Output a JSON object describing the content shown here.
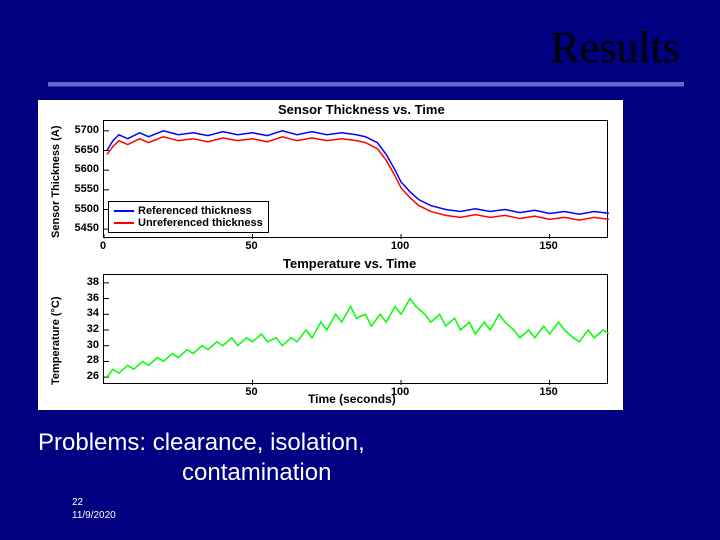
{
  "slide": {
    "title": "Results",
    "body_line1": "Problems:  clearance, isolation,",
    "body_line2": "contamination",
    "page_number": "22",
    "date": "11/9/2020"
  },
  "colors": {
    "slide_bg": "#000080",
    "accent": "#6666cc",
    "series_referenced": "#0000ff",
    "series_unreferenced": "#ff0000",
    "series_temperature": "#00ff00",
    "grid": "#cccccc",
    "plot_border": "#000000"
  },
  "chart1": {
    "title": "Sensor Thickness vs. Time",
    "title_fontsize": 13,
    "ylabel": "Sensor Thickness (A)",
    "label_fontsize": 11,
    "xlim": [
      0,
      170
    ],
    "ylim": [
      5425,
      5725
    ],
    "xticks": [
      0,
      50,
      100,
      150
    ],
    "yticks": [
      5450,
      5500,
      5550,
      5600,
      5650,
      5700
    ],
    "legend": {
      "items": [
        {
          "label": "Referenced thickness",
          "color": "#0000ff"
        },
        {
          "label": "Unreferenced thickness",
          "color": "#ff0000"
        }
      ]
    },
    "series": [
      {
        "name": "referenced",
        "color": "#0000ff",
        "linewidth": 1.5,
        "data": [
          [
            1,
            5650
          ],
          [
            3,
            5675
          ],
          [
            5,
            5690
          ],
          [
            8,
            5680
          ],
          [
            12,
            5695
          ],
          [
            15,
            5685
          ],
          [
            20,
            5700
          ],
          [
            25,
            5690
          ],
          [
            30,
            5695
          ],
          [
            35,
            5688
          ],
          [
            40,
            5698
          ],
          [
            45,
            5690
          ],
          [
            50,
            5695
          ],
          [
            55,
            5688
          ],
          [
            60,
            5700
          ],
          [
            65,
            5690
          ],
          [
            70,
            5698
          ],
          [
            75,
            5690
          ],
          [
            80,
            5695
          ],
          [
            85,
            5690
          ],
          [
            88,
            5685
          ],
          [
            92,
            5670
          ],
          [
            95,
            5640
          ],
          [
            98,
            5600
          ],
          [
            100,
            5570
          ],
          [
            103,
            5545
          ],
          [
            106,
            5525
          ],
          [
            110,
            5510
          ],
          [
            115,
            5500
          ],
          [
            120,
            5495
          ],
          [
            125,
            5502
          ],
          [
            130,
            5495
          ],
          [
            135,
            5500
          ],
          [
            140,
            5492
          ],
          [
            145,
            5498
          ],
          [
            150,
            5490
          ],
          [
            155,
            5495
          ],
          [
            160,
            5488
          ],
          [
            165,
            5495
          ],
          [
            170,
            5490
          ]
        ]
      },
      {
        "name": "unreferenced",
        "color": "#ff0000",
        "linewidth": 1.5,
        "data": [
          [
            1,
            5640
          ],
          [
            3,
            5660
          ],
          [
            5,
            5675
          ],
          [
            8,
            5665
          ],
          [
            12,
            5680
          ],
          [
            15,
            5670
          ],
          [
            20,
            5685
          ],
          [
            25,
            5675
          ],
          [
            30,
            5680
          ],
          [
            35,
            5672
          ],
          [
            40,
            5682
          ],
          [
            45,
            5675
          ],
          [
            50,
            5680
          ],
          [
            55,
            5672
          ],
          [
            60,
            5685
          ],
          [
            65,
            5675
          ],
          [
            70,
            5682
          ],
          [
            75,
            5675
          ],
          [
            80,
            5680
          ],
          [
            85,
            5675
          ],
          [
            88,
            5670
          ],
          [
            92,
            5655
          ],
          [
            95,
            5625
          ],
          [
            98,
            5585
          ],
          [
            100,
            5555
          ],
          [
            103,
            5530
          ],
          [
            106,
            5510
          ],
          [
            110,
            5495
          ],
          [
            115,
            5485
          ],
          [
            120,
            5480
          ],
          [
            125,
            5487
          ],
          [
            130,
            5480
          ],
          [
            135,
            5485
          ],
          [
            140,
            5477
          ],
          [
            145,
            5483
          ],
          [
            150,
            5475
          ],
          [
            155,
            5480
          ],
          [
            160,
            5473
          ],
          [
            165,
            5480
          ],
          [
            170,
            5475
          ]
        ]
      }
    ]
  },
  "chart2": {
    "title": "Temperature vs. Time",
    "title_fontsize": 13,
    "ylabel": "Temperature (°C)",
    "xlabel": "Time (seconds)",
    "label_fontsize": 11,
    "xlim": [
      0,
      170
    ],
    "ylim": [
      25,
      39
    ],
    "xticks": [
      50,
      100,
      150
    ],
    "yticks": [
      26,
      28,
      30,
      32,
      34,
      36,
      38
    ],
    "series": [
      {
        "name": "temperature",
        "color": "#00ff00",
        "linewidth": 1.5,
        "data": [
          [
            1,
            26
          ],
          [
            3,
            27
          ],
          [
            5,
            26.5
          ],
          [
            8,
            27.5
          ],
          [
            10,
            27
          ],
          [
            13,
            28
          ],
          [
            15,
            27.5
          ],
          [
            18,
            28.5
          ],
          [
            20,
            28
          ],
          [
            23,
            29
          ],
          [
            25,
            28.5
          ],
          [
            28,
            29.5
          ],
          [
            30,
            29
          ],
          [
            33,
            30
          ],
          [
            35,
            29.5
          ],
          [
            38,
            30.5
          ],
          [
            40,
            30
          ],
          [
            43,
            31
          ],
          [
            45,
            30
          ],
          [
            48,
            31
          ],
          [
            50,
            30.5
          ],
          [
            53,
            31.5
          ],
          [
            55,
            30.5
          ],
          [
            58,
            31
          ],
          [
            60,
            30
          ],
          [
            63,
            31
          ],
          [
            65,
            30.5
          ],
          [
            68,
            32
          ],
          [
            70,
            31
          ],
          [
            73,
            33
          ],
          [
            75,
            32
          ],
          [
            78,
            34
          ],
          [
            80,
            33
          ],
          [
            83,
            35
          ],
          [
            85,
            33.5
          ],
          [
            88,
            34
          ],
          [
            90,
            32.5
          ],
          [
            93,
            34
          ],
          [
            95,
            33
          ],
          [
            98,
            35
          ],
          [
            100,
            34
          ],
          [
            103,
            36
          ],
          [
            105,
            35
          ],
          [
            108,
            34
          ],
          [
            110,
            33
          ],
          [
            113,
            34
          ],
          [
            115,
            32.5
          ],
          [
            118,
            33.5
          ],
          [
            120,
            32
          ],
          [
            123,
            33
          ],
          [
            125,
            31.5
          ],
          [
            128,
            33
          ],
          [
            130,
            32
          ],
          [
            133,
            34
          ],
          [
            135,
            33
          ],
          [
            138,
            32
          ],
          [
            140,
            31
          ],
          [
            143,
            32
          ],
          [
            145,
            31
          ],
          [
            148,
            32.5
          ],
          [
            150,
            31.5
          ],
          [
            153,
            33
          ],
          [
            155,
            32
          ],
          [
            158,
            31
          ],
          [
            160,
            30.5
          ],
          [
            163,
            32
          ],
          [
            165,
            31
          ],
          [
            168,
            32
          ],
          [
            170,
            31.5
          ]
        ]
      }
    ]
  }
}
